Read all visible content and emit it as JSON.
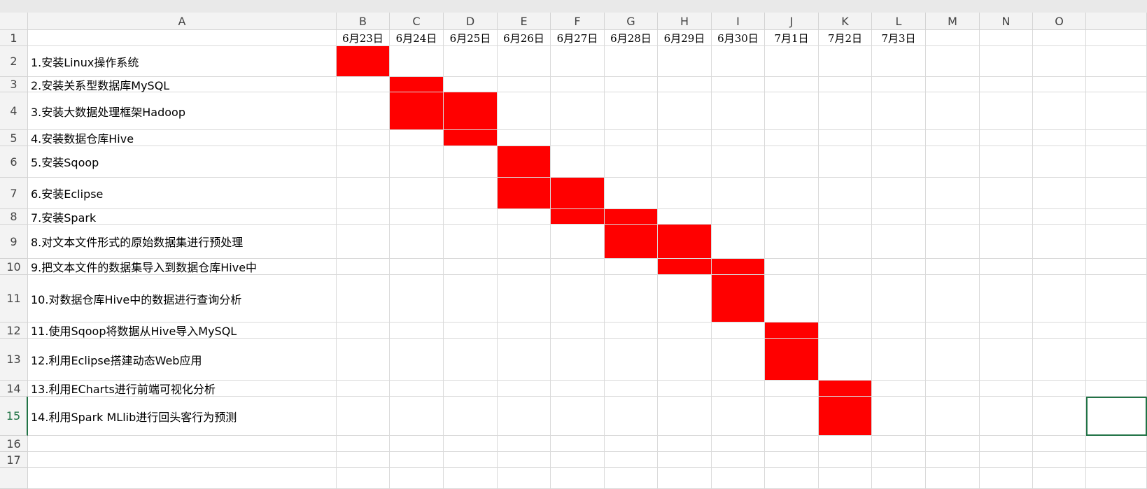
{
  "sheet": {
    "columns": [
      "A",
      "B",
      "C",
      "D",
      "E",
      "F",
      "G",
      "H",
      "I",
      "J",
      "K",
      "L",
      "M",
      "N",
      "O"
    ],
    "rows": [
      "1",
      "2",
      "3",
      "4",
      "5",
      "6",
      "7",
      "8",
      "9",
      "10",
      "11",
      "12",
      "13",
      "14",
      "15",
      "16",
      "17"
    ],
    "dates": [
      "6月23日",
      "6月24日",
      "6月25日",
      "6月26日",
      "6月27日",
      "6月28日",
      "6月29日",
      "6月30日",
      "7月1日",
      "7月2日",
      "7月3日"
    ],
    "tasks": [
      "1.安装Linux操作系统",
      "2.安装关系型数据库MySQL",
      "3.安装大数据处理框架Hadoop",
      "4.安装数据仓库Hive",
      "5.安装Sqoop",
      "6.安装Eclipse",
      "7.安装Spark",
      "8.对文本文件形式的原始数据集进行预处理",
      "9.把文本文件的数据集导入到数据仓库Hive中",
      "10.对数据仓库Hive中的数据进行查询分析",
      "11.使用Sqoop将数据从Hive导入MySQL",
      "12.利用Eclipse搭建动态Web应用",
      "13.利用ECharts进行前端可视化分析",
      "14.利用Spark MLlib进行回头客行为预测"
    ]
  }
}
